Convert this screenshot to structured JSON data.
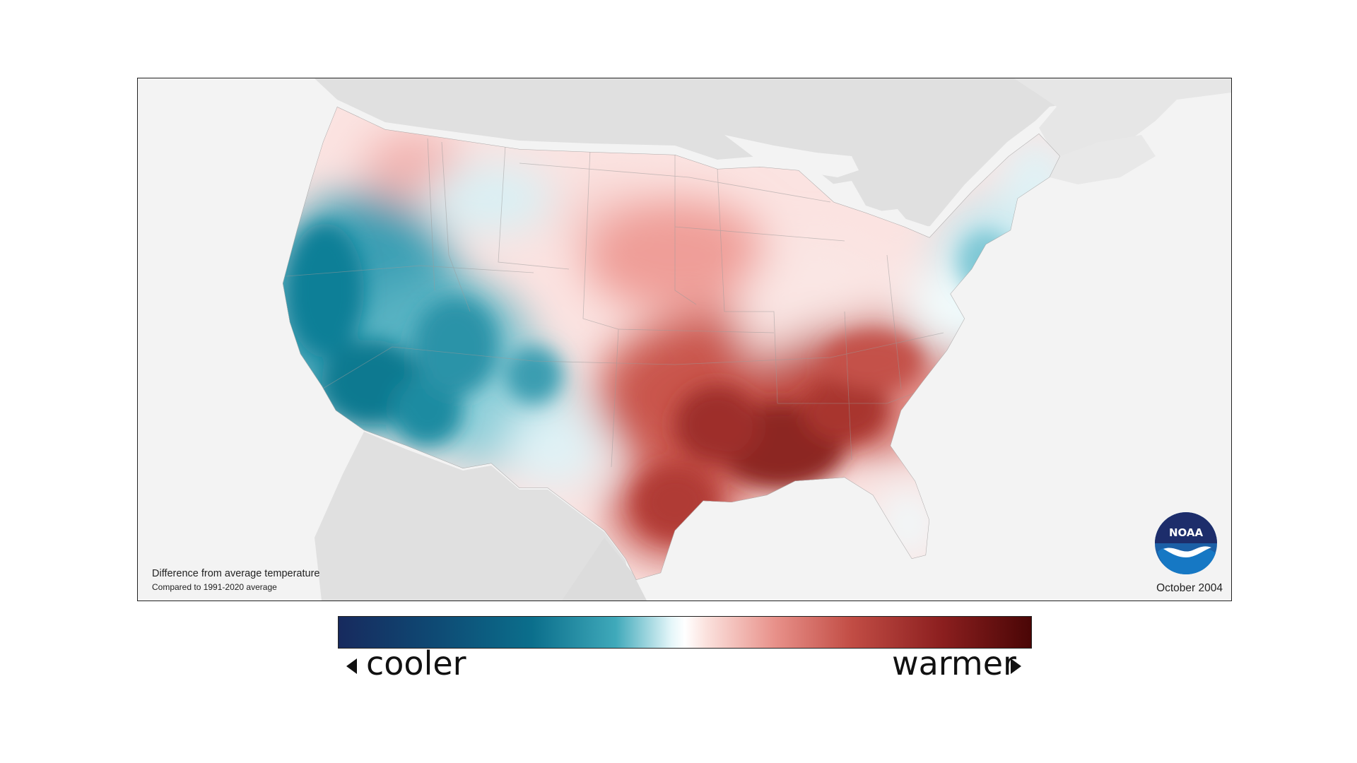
{
  "map": {
    "caption_title": "Difference from average temperature",
    "caption_subtitle": "Compared to 1991-2020 average",
    "period": "October 2004",
    "logo_text": "NOAA"
  },
  "legend": {
    "cooler_label": "cooler",
    "warmer_label": "warmer",
    "gradient_colors": [
      "#172a5e",
      "#0e4a74",
      "#0b6f8c",
      "#3fa9ba",
      "#e4f6f9",
      "#ffffff",
      "#fbe2de",
      "#e8918a",
      "#c24d45",
      "#8c1f1f",
      "#4a0606"
    ]
  },
  "colors": {
    "land_background": "#e2e2e2",
    "ocean": "#f3f3f3",
    "cool_anomaly": "#0b7a92",
    "warm_anomaly": "#a0302b"
  }
}
